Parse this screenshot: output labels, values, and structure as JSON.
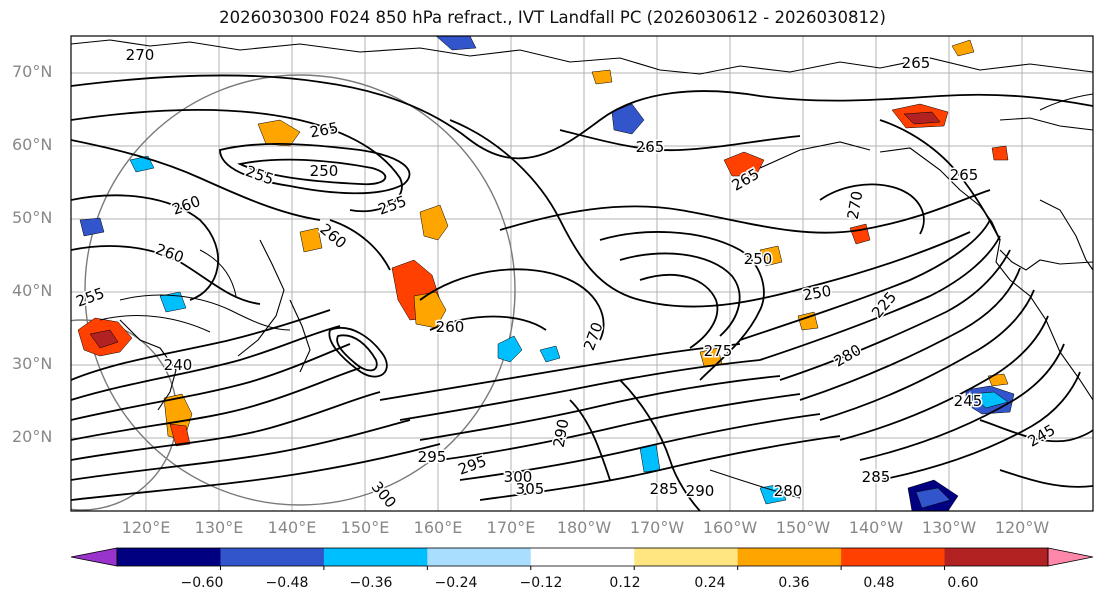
{
  "title": "2026030300 F024 850 hPa refract., IVT Landfall PC (2026030612 - 2026030812)",
  "latitude_labels": [
    "70°N",
    "60°N",
    "50°N",
    "40°N",
    "30°N",
    "20°N"
  ],
  "longitude_labels": [
    "120°E",
    "130°E",
    "140°E",
    "150°E",
    "160°E",
    "170°E",
    "180°W",
    "170°W",
    "160°W",
    "150°W",
    "140°W",
    "130°W",
    "120°W"
  ],
  "contour_labels": [
    "270",
    "265",
    "255",
    "250",
    "265",
    "260",
    "260",
    "255",
    "250",
    "260",
    "240",
    "265",
    "270",
    "265",
    "260",
    "255",
    "250",
    "270",
    "280",
    "290",
    "295",
    "295",
    "300",
    "305",
    "275",
    "245",
    "245",
    "225",
    "265",
    "285",
    "290",
    "280",
    "285",
    "300"
  ],
  "colorbar": {
    "colors": [
      "#9933cc",
      "#000080",
      "#3355cc",
      "#00bfff",
      "#aadeff",
      "#ffffff",
      "#ffe680",
      "#ffa500",
      "#ff4000",
      "#b22222",
      "#ff88aa"
    ],
    "tick_labels": [
      "−0.60",
      "−0.48",
      "−0.36",
      "−0.24",
      "−0.12",
      "0.12",
      "0.24",
      "0.36",
      "0.48",
      "0.60"
    ]
  },
  "colors": {
    "axes_label": "#888888",
    "contour": "#000000",
    "grid": "#999999"
  }
}
